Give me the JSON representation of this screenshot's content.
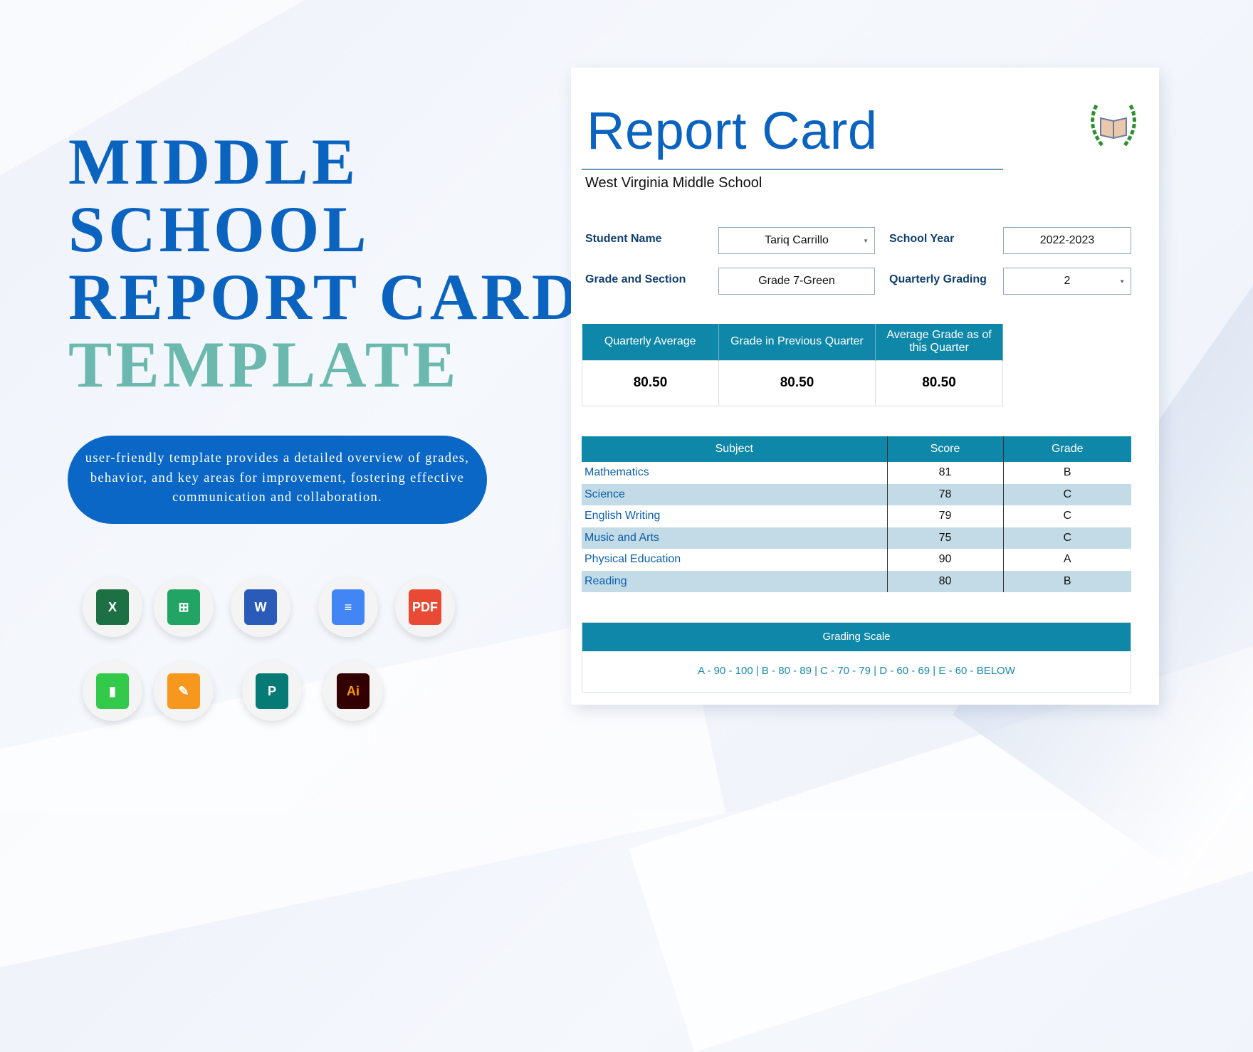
{
  "hero": {
    "line1": "MIDDLE",
    "line2": "SCHOOL",
    "line3": "REPORT CARD",
    "line4": "TEMPLATE",
    "description": "user-friendly template provides a detailed overview of grades, behavior, and key areas for improvement, fostering effective communication and collaboration."
  },
  "app_icons": [
    {
      "name": "excel-icon",
      "glyph": "X",
      "color": "#1d7044"
    },
    {
      "name": "google-sheets-icon",
      "glyph": "⊞",
      "color": "#21a464"
    },
    {
      "name": "word-icon",
      "glyph": "W",
      "color": "#2b5bb8"
    },
    {
      "name": "google-docs-icon",
      "glyph": "≡",
      "color": "#4285f4"
    },
    {
      "name": "pdf-icon",
      "glyph": "PDF",
      "color": "#e94a35"
    },
    {
      "name": "numbers-icon",
      "glyph": "▮",
      "color": "#33c94a"
    },
    {
      "name": "pages-icon",
      "glyph": "✎",
      "color": "#f7971e"
    },
    {
      "name": "publisher-icon",
      "glyph": "P",
      "color": "#067a75"
    },
    {
      "name": "illustrator-icon",
      "glyph": "Ai",
      "color": "#330000"
    }
  ],
  "card": {
    "title": "Report Card",
    "school": "West Virginia Middle School",
    "fields": {
      "student_name_label": "Student Name",
      "student_name": "Tariq Carrillo",
      "school_year_label": "School Year",
      "school_year": "2022-2023",
      "grade_section_label": "Grade and Section",
      "grade_section": "Grade 7-Green",
      "quarterly_grading_label": "Quarterly Grading",
      "quarterly_grading": "2"
    },
    "summary": {
      "headers": [
        "Quarterly Average",
        "Grade in Previous Quarter",
        "Average Grade as of this Quarter"
      ],
      "values": [
        "80.50",
        "80.50",
        "80.50"
      ]
    },
    "subjects": {
      "headers": [
        "Subject",
        "Score",
        "Grade"
      ],
      "rows": [
        [
          "Mathematics",
          "81",
          "B"
        ],
        [
          "Science",
          "78",
          "C"
        ],
        [
          "English Writing",
          "79",
          "C"
        ],
        [
          "Music and Arts",
          "75",
          "C"
        ],
        [
          "Physical Education",
          "90",
          "A"
        ],
        [
          "Reading",
          "80",
          "B"
        ]
      ]
    },
    "grading_scale": {
      "title": "Grading Scale",
      "text": "A - 90 - 100 | B - 80 - 89 | C - 70 - 79 | D - 60 - 69 | E - 60 - BELOW"
    }
  }
}
